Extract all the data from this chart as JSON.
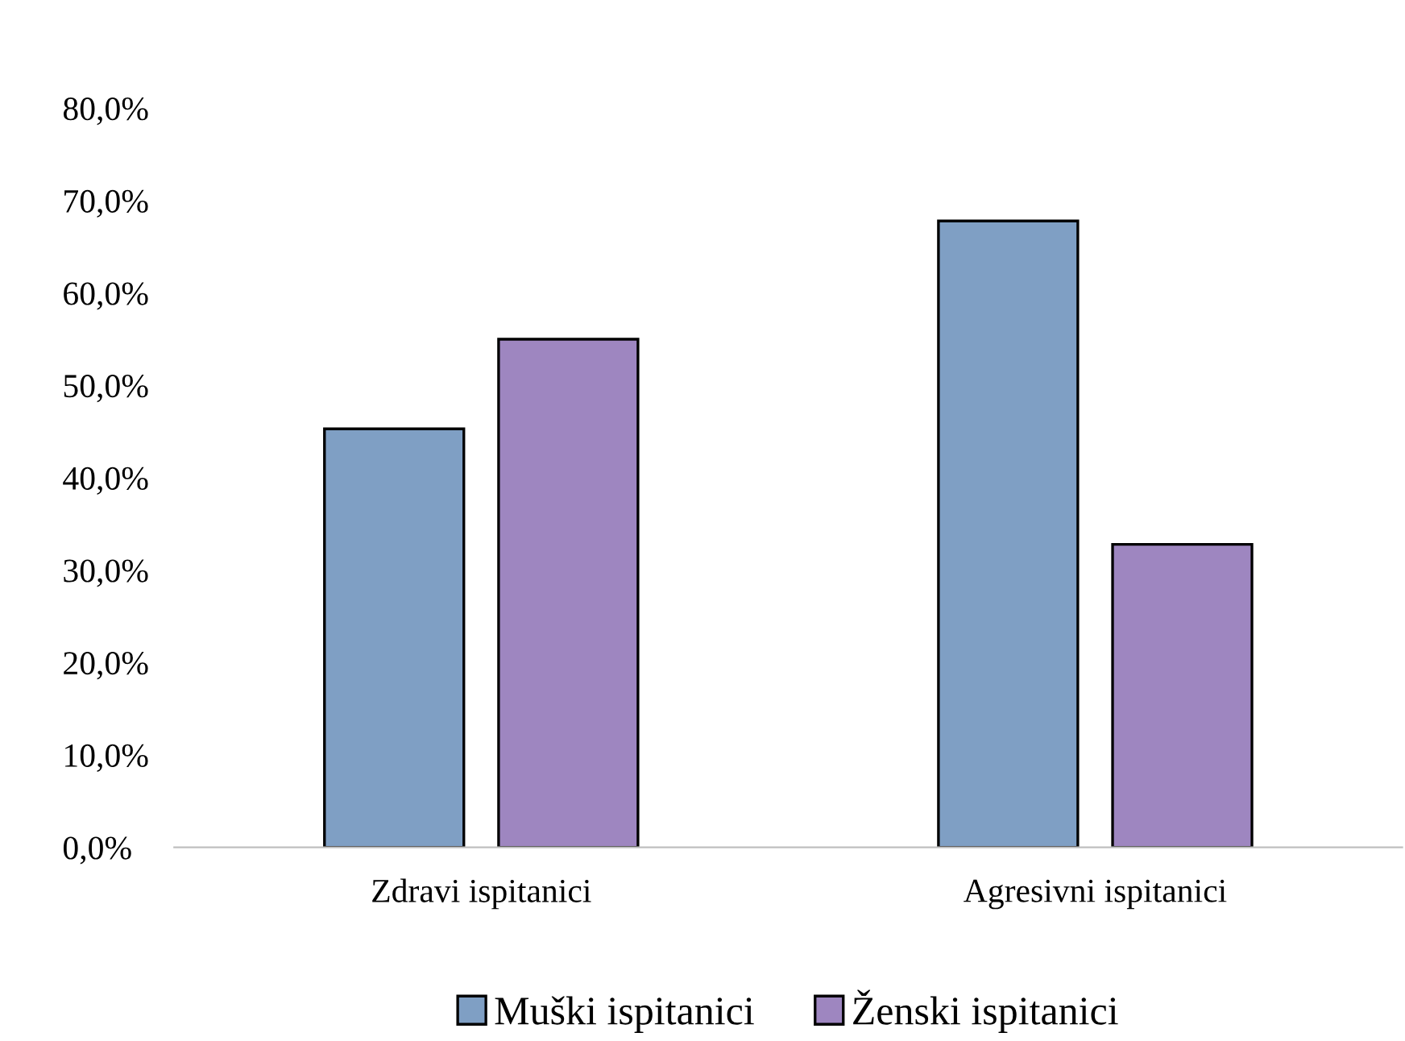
{
  "chart_data": {
    "type": "bar",
    "categories": [
      "Zdravi ispitanici",
      "Agresivni ispitanici"
    ],
    "series": [
      {
        "name": "Muški ispitanici",
        "color": "#7f9fc4",
        "values": [
          45.3,
          67.8
        ]
      },
      {
        "name": "Ženski ispitanici",
        "color": "#9e86c0",
        "values": [
          55.0,
          32.8
        ]
      }
    ],
    "ylim": [
      0,
      80
    ],
    "yticks": [
      {
        "value": 0,
        "label": "0,0%"
      },
      {
        "value": 10,
        "label": "10,0%"
      },
      {
        "value": 20,
        "label": "20,0%"
      },
      {
        "value": 30,
        "label": "30,0%"
      },
      {
        "value": 40,
        "label": "40,0%"
      },
      {
        "value": 50,
        "label": "50,0%"
      },
      {
        "value": 60,
        "label": "60,0%"
      },
      {
        "value": 70,
        "label": "70,0%"
      },
      {
        "value": 80,
        "label": "80,0%"
      }
    ],
    "grid": false,
    "legend": "bottom"
  }
}
